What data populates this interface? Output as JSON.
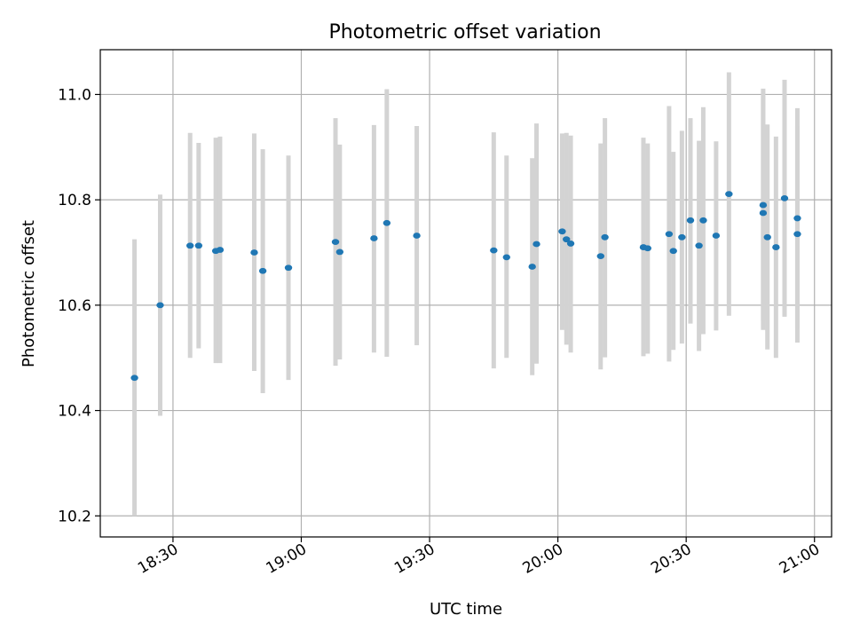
{
  "chart_data": {
    "type": "scatter",
    "title": "Photometric offset variation",
    "xlabel": "UTC time",
    "ylabel": "Photometric offset",
    "x_ticks": [
      "18:30",
      "19:00",
      "19:30",
      "20:00",
      "20:30",
      "21:00"
    ],
    "y_ticks": [
      "10.2",
      "10.4",
      "10.6",
      "10.8",
      "11.0"
    ],
    "xlim": [
      "18:13",
      "21:04"
    ],
    "ylim": [
      10.16,
      11.085
    ],
    "grid": true,
    "colors": {
      "point": "#1f77b4",
      "errorbar": "#d3d3d3",
      "grid": "#b0b0b0"
    },
    "points": [
      {
        "t": "18:21",
        "y": 10.462,
        "lo": 10.2,
        "hi": 10.725
      },
      {
        "t": "18:27",
        "y": 10.6,
        "lo": 10.39,
        "hi": 10.81
      },
      {
        "t": "18:34",
        "y": 10.713,
        "lo": 10.5,
        "hi": 10.927
      },
      {
        "t": "18:36",
        "y": 10.713,
        "lo": 10.518,
        "hi": 10.908
      },
      {
        "t": "18:40",
        "y": 10.703,
        "lo": 10.49,
        "hi": 10.918
      },
      {
        "t": "18:41",
        "y": 10.705,
        "lo": 10.49,
        "hi": 10.92
      },
      {
        "t": "18:49",
        "y": 10.7,
        "lo": 10.475,
        "hi": 10.926
      },
      {
        "t": "18:51",
        "y": 10.665,
        "lo": 10.433,
        "hi": 10.896
      },
      {
        "t": "18:57",
        "y": 10.671,
        "lo": 10.458,
        "hi": 10.884
      },
      {
        "t": "19:08",
        "y": 10.72,
        "lo": 10.485,
        "hi": 10.955
      },
      {
        "t": "19:09",
        "y": 10.701,
        "lo": 10.497,
        "hi": 10.905
      },
      {
        "t": "19:17",
        "y": 10.727,
        "lo": 10.51,
        "hi": 10.942
      },
      {
        "t": "19:20",
        "y": 10.756,
        "lo": 10.502,
        "hi": 11.01
      },
      {
        "t": "19:27",
        "y": 10.732,
        "lo": 10.524,
        "hi": 10.94
      },
      {
        "t": "19:45",
        "y": 10.704,
        "lo": 10.48,
        "hi": 10.928
      },
      {
        "t": "19:48",
        "y": 10.691,
        "lo": 10.5,
        "hi": 10.884
      },
      {
        "t": "19:54",
        "y": 10.673,
        "lo": 10.467,
        "hi": 10.879
      },
      {
        "t": "19:55",
        "y": 10.716,
        "lo": 10.489,
        "hi": 10.945
      },
      {
        "t": "20:01",
        "y": 10.74,
        "lo": 10.553,
        "hi": 10.926
      },
      {
        "t": "20:02",
        "y": 10.725,
        "lo": 10.525,
        "hi": 10.927
      },
      {
        "t": "20:03",
        "y": 10.717,
        "lo": 10.51,
        "hi": 10.922
      },
      {
        "t": "20:10",
        "y": 10.693,
        "lo": 10.478,
        "hi": 10.907
      },
      {
        "t": "20:11",
        "y": 10.729,
        "lo": 10.501,
        "hi": 10.955
      },
      {
        "t": "20:20",
        "y": 10.71,
        "lo": 10.503,
        "hi": 10.918
      },
      {
        "t": "20:21",
        "y": 10.708,
        "lo": 10.508,
        "hi": 10.907
      },
      {
        "t": "20:26",
        "y": 10.735,
        "lo": 10.493,
        "hi": 10.978
      },
      {
        "t": "20:27",
        "y": 10.703,
        "lo": 10.515,
        "hi": 10.891
      },
      {
        "t": "20:29",
        "y": 10.729,
        "lo": 10.527,
        "hi": 10.931
      },
      {
        "t": "20:31",
        "y": 10.761,
        "lo": 10.565,
        "hi": 10.955
      },
      {
        "t": "20:33",
        "y": 10.713,
        "lo": 10.513,
        "hi": 10.912
      },
      {
        "t": "20:34",
        "y": 10.761,
        "lo": 10.545,
        "hi": 10.976
      },
      {
        "t": "20:37",
        "y": 10.732,
        "lo": 10.552,
        "hi": 10.911
      },
      {
        "t": "20:40",
        "y": 10.811,
        "lo": 10.58,
        "hi": 11.042
      },
      {
        "t": "20:48",
        "y": 10.775,
        "lo": 10.553,
        "hi": 10.997
      },
      {
        "t": "20:48",
        "y": 10.79,
        "lo": 10.57,
        "hi": 11.011
      },
      {
        "t": "20:49",
        "y": 10.729,
        "lo": 10.516,
        "hi": 10.943
      },
      {
        "t": "20:51",
        "y": 10.71,
        "lo": 10.5,
        "hi": 10.92
      },
      {
        "t": "20:53",
        "y": 10.803,
        "lo": 10.578,
        "hi": 11.028
      },
      {
        "t": "20:56",
        "y": 10.765,
        "lo": 10.556,
        "hi": 10.974
      },
      {
        "t": "20:56",
        "y": 10.735,
        "lo": 10.529,
        "hi": 10.94
      }
    ]
  }
}
